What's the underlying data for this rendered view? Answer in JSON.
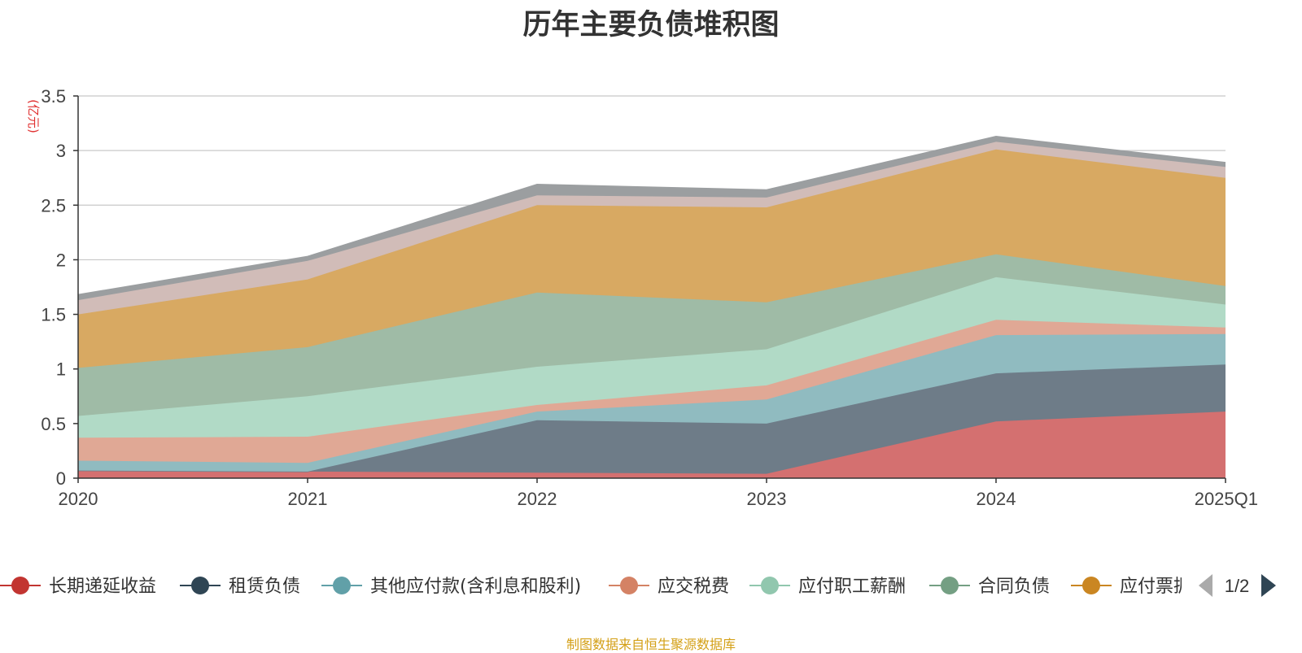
{
  "page": {
    "title": "历年主要负债堆积图",
    "source_note": "制图数据来自恒生聚源数据库",
    "legend_page": "1/2"
  },
  "colors": {
    "source_note": "#d4a017",
    "unit_label": "#e03030"
  },
  "chart_data": {
    "type": "area",
    "stacked": true,
    "title": "历年主要负债堆积图",
    "ylabel": "(亿元)",
    "ylim": [
      0,
      3.5
    ],
    "yticks": [
      0,
      0.5,
      1,
      1.5,
      2,
      2.5,
      3,
      3.5
    ],
    "categories": [
      "2020",
      "2021",
      "2022",
      "2023",
      "2024",
      "2025Q1"
    ],
    "grid": true,
    "legend_position": "bottom",
    "series": [
      {
        "name": "长期递延收益",
        "color": "#c23531",
        "fill": "#d47070",
        "values": [
          0.07,
          0.06,
          0.05,
          0.04,
          0.52,
          0.61
        ]
      },
      {
        "name": "租赁负债",
        "color": "#2f4554",
        "fill": "#6e7c88",
        "values": [
          0.0,
          0.0,
          0.48,
          0.46,
          0.44,
          0.43
        ]
      },
      {
        "name": "其他应付款(含利息和股利)",
        "color": "#61a0a8",
        "fill": "#90bbc0",
        "values": [
          0.09,
          0.08,
          0.08,
          0.22,
          0.35,
          0.28
        ]
      },
      {
        "name": "应交税费",
        "color": "#d48265",
        "fill": "#e0a895",
        "values": [
          0.21,
          0.24,
          0.06,
          0.13,
          0.14,
          0.06
        ]
      },
      {
        "name": "应付职工薪酬",
        "color": "#91c7ae",
        "fill": "#b1dac6",
        "values": [
          0.2,
          0.37,
          0.35,
          0.33,
          0.39,
          0.21
        ]
      },
      {
        "name": "合同负债",
        "color": "#749f83",
        "fill": "#9fbba6",
        "values": [
          0.44,
          0.45,
          0.68,
          0.43,
          0.21,
          0.17
        ]
      },
      {
        "name": "应付票据",
        "color": "#ca8622",
        "fill": "#d8a962",
        "values": [
          0.49,
          0.62,
          0.8,
          0.87,
          0.96,
          0.99
        ]
      },
      {
        "name": "",
        "color": "#bda29a",
        "fill": "#d1bcb8",
        "values": [
          0.13,
          0.17,
          0.09,
          0.09,
          0.07,
          0.1
        ]
      },
      {
        "name": "",
        "color": "#6e7074",
        "fill": "#9b9ea0",
        "values": [
          0.05,
          0.04,
          0.1,
          0.07,
          0.05,
          0.04
        ]
      }
    ]
  }
}
